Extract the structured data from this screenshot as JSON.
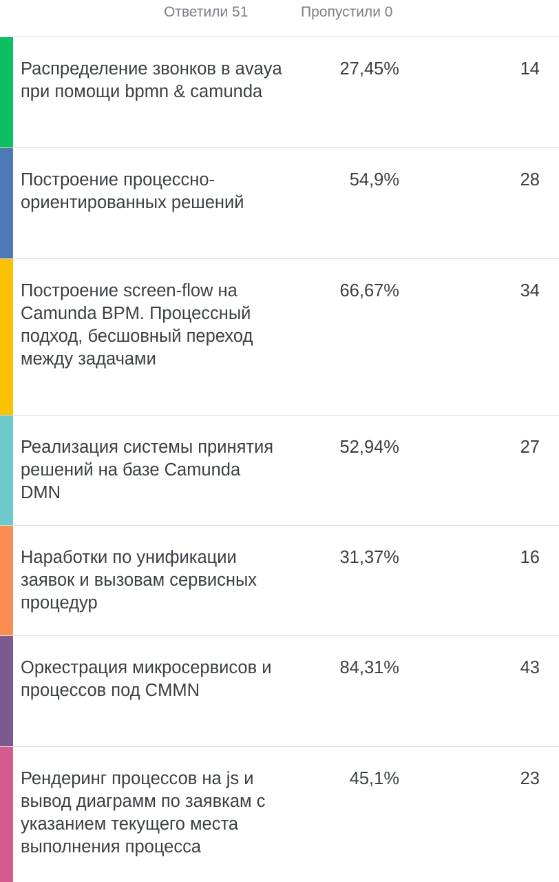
{
  "summary": {
    "answered": "Ответили 51",
    "skipped": "Пропустили 0"
  },
  "rows": [
    {
      "label": "Распределение звонков в avaya при помощи bpmn & camunda",
      "percent": "27,45%",
      "count": "14",
      "color": "#0dbf62"
    },
    {
      "label": "Построение процессно-ориентированных решений",
      "percent": "54,9%",
      "count": "28",
      "color": "#4f79b4"
    },
    {
      "label": "Построение screen-flow на Camunda BPM. Процессный подход, бесшовный переход между задачами",
      "percent": "66,67%",
      "count": "34",
      "color": "#fbc103"
    },
    {
      "label": "Реализация системы принятия решений на базе Camunda DMN",
      "percent": "52,94%",
      "count": "27",
      "color": "#6ccacb"
    },
    {
      "label": "Наработки по унификации заявок и вызовам сервисных процедур",
      "percent": "31,37%",
      "count": "16",
      "color": "#fc8d52"
    },
    {
      "label": "Оркестрация микросервисов и процессов под CMMN",
      "percent": "84,31%",
      "count": "43",
      "color": "#7b5b8d"
    },
    {
      "label": "Рендеринг процессов на js и вывод диаграмм по заявкам с указанием текущего места выполнения процесса",
      "percent": "45,1%",
      "count": "23",
      "color": "#d45c8f"
    }
  ]
}
